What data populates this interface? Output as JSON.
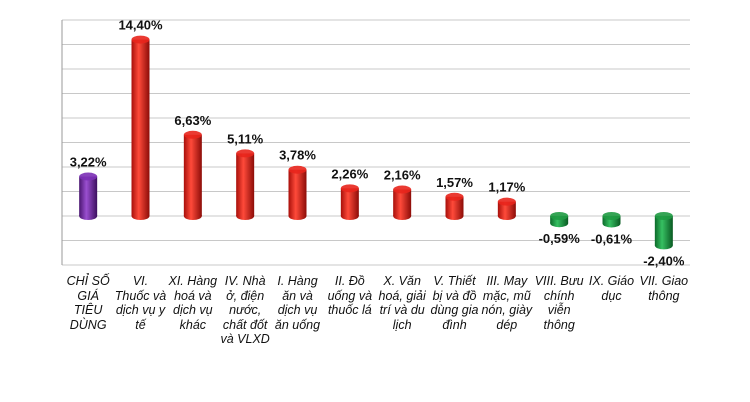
{
  "chart_data": {
    "type": "bar",
    "title": "",
    "xlabel": "",
    "ylabel": "",
    "categories": [
      "CHỈ SỐ GIÁ TIÊU DÙNG",
      "VI. Thuốc và dịch vụ y tế",
      "XI. Hàng hoá và dịch vụ khác",
      "IV. Nhà ở, điện nước, chất đốt và VLXD",
      "I. Hàng ăn và dịch vụ ăn uống",
      "II. Đồ uống và thuốc lá",
      "X. Văn hoá, giải trí và du lịch",
      "V. Thiết bị và đồ dùng gia đình",
      "III. May mặc, mũ nón, giày dép",
      "VIII. Bưu chính viễn thông",
      "IX. Giáo dục",
      "VII. Giao thông"
    ],
    "values": [
      3.22,
      14.4,
      6.63,
      5.11,
      3.78,
      2.26,
      2.16,
      1.57,
      1.17,
      -0.59,
      -0.61,
      -2.4
    ],
    "data_labels": [
      "3,22%",
      "14,40%",
      "6,63%",
      "5,11%",
      "3,78%",
      "2,26%",
      "2,16%",
      "1,57%",
      "1,17%",
      "-0,59%",
      "-0,61%",
      "-2,40%"
    ],
    "ylim": [
      -4,
      16
    ],
    "grid": true,
    "colors": {
      "total": "#7b2fb5",
      "positive": "#e8251c",
      "negative": "#1f9a43",
      "grid": "#c8c8c8"
    }
  }
}
